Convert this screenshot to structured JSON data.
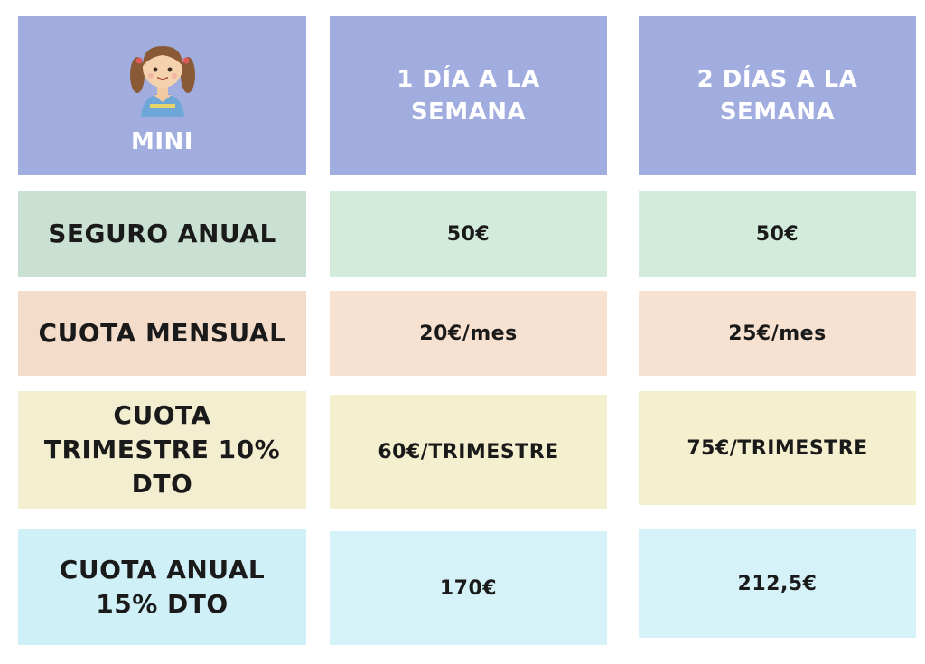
{
  "header": {
    "corner_label": "MINI",
    "corner_icon": "girl-avatar-icon",
    "col1": "1 DÍA A LA SEMANA",
    "col2": "2 DÍAS A LA SEMANA"
  },
  "rows": [
    {
      "label": "SEGURO ANUAL",
      "col1": "50€",
      "col2": "50€"
    },
    {
      "label": "CUOTA MENSUAL",
      "col1": "20€/mes",
      "col2": "25€/mes"
    },
    {
      "label": "CUOTA TRIMESTRE 10% DTO",
      "col1": "60€/TRIMESTRE",
      "col2": "75€/TRIMESTRE"
    },
    {
      "label": "CUOTA ANUAL 15% DTO",
      "col1": "170€",
      "col2": "212,5€"
    }
  ],
  "colors": {
    "header": "#a1acdf",
    "row_seguro": "#c9e0d3",
    "row_mensual": "#f4dccb",
    "row_trimestre": "#f3eed0",
    "row_anual": "#d0f0f8"
  }
}
